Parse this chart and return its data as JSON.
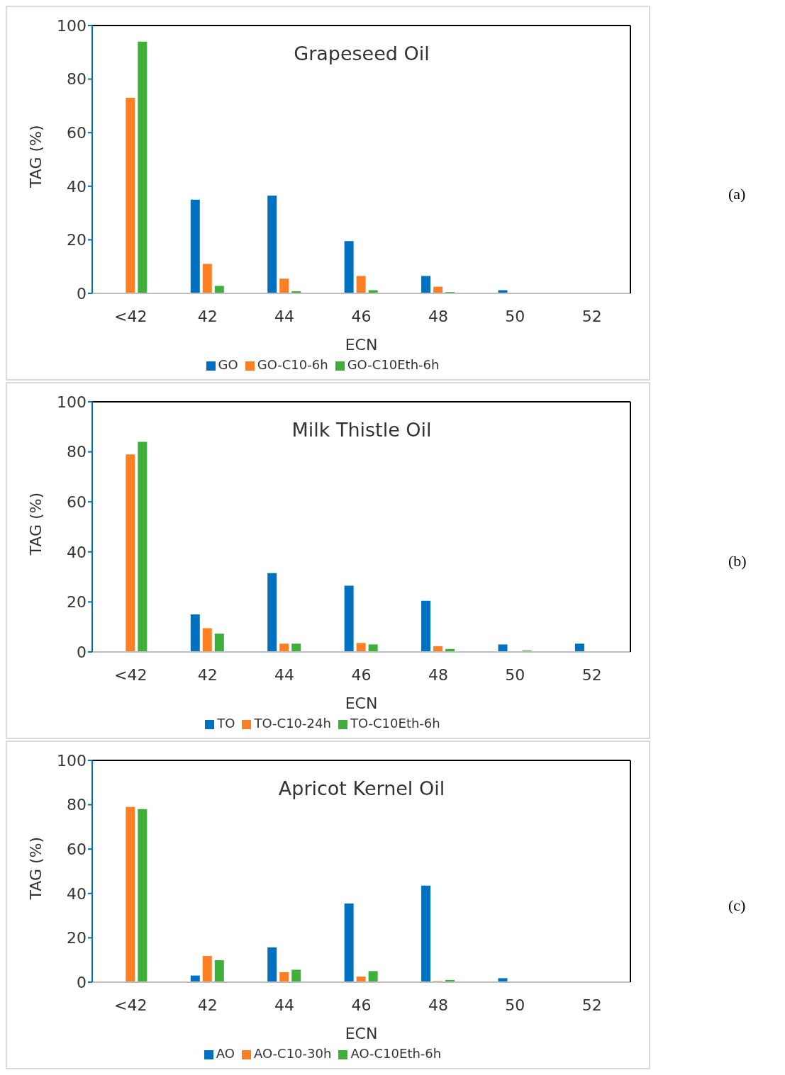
{
  "chart_data": [
    {
      "type": "bar",
      "title": "Grapeseed Oil",
      "xlabel": "ECN",
      "ylabel": "TAG (%)",
      "annotations": [
        "(a)"
      ],
      "categories": [
        "<42",
        "42",
        "44",
        "46",
        "48",
        "50",
        "52"
      ],
      "ylim": [
        0,
        100
      ],
      "yticks": [
        0,
        20,
        40,
        60,
        80,
        100
      ],
      "legend": "bottom",
      "series": [
        {
          "name": "GO",
          "color": "#0070c0",
          "values": [
            0,
            35,
            36.5,
            19.5,
            6.5,
            1.2,
            0
          ]
        },
        {
          "name": "GO-C10-6h",
          "color": "#fd7f23",
          "values": [
            73,
            11,
            5.5,
            6.5,
            2.5,
            0,
            0
          ]
        },
        {
          "name": "GO-C10Eth-6h",
          "color": "#3fae3a",
          "values": [
            94,
            2.8,
            0.8,
            1.2,
            0.5,
            0,
            0
          ]
        }
      ]
    },
    {
      "type": "bar",
      "title": "Milk Thistle Oil",
      "xlabel": "ECN",
      "ylabel": "TAG (%)",
      "annotations": [
        "(b)"
      ],
      "categories": [
        "<42",
        "42",
        "44",
        "46",
        "48",
        "50",
        "52"
      ],
      "ylim": [
        0,
        100
      ],
      "yticks": [
        0,
        20,
        40,
        60,
        80,
        100
      ],
      "legend": "bottom",
      "series": [
        {
          "name": "TO",
          "color": "#0070c0",
          "values": [
            0,
            15,
            31.5,
            26.5,
            20.5,
            3,
            3.3
          ]
        },
        {
          "name": "TO-C10-24h",
          "color": "#fd7f23",
          "values": [
            79,
            9.5,
            3.3,
            3.6,
            2.3,
            0,
            0
          ]
        },
        {
          "name": "TO-C10Eth-6h",
          "color": "#3fae3a",
          "values": [
            84,
            7.3,
            3.3,
            3,
            1.2,
            0.6,
            0
          ]
        }
      ]
    },
    {
      "type": "bar",
      "title": "Apricot Kernel Oil",
      "xlabel": "ECN",
      "ylabel": "TAG (%)",
      "annotations": [
        "(c)"
      ],
      "categories": [
        "<42",
        "42",
        "44",
        "46",
        "48",
        "50",
        "52"
      ],
      "ylim": [
        0,
        100
      ],
      "yticks": [
        0,
        20,
        40,
        60,
        80,
        100
      ],
      "legend": "bottom",
      "series": [
        {
          "name": "AO",
          "color": "#0070c0",
          "values": [
            0,
            3,
            15.7,
            35.5,
            43.5,
            1.8,
            0
          ]
        },
        {
          "name": "AO-C10-30h",
          "color": "#fd7f23",
          "values": [
            79,
            11.8,
            4.5,
            2.5,
            0.5,
            0,
            0
          ]
        },
        {
          "name": "AO-C10Eth-6h",
          "color": "#3fae3a",
          "values": [
            78,
            9.9,
            5.6,
            5,
            1,
            0,
            0
          ]
        }
      ]
    }
  ]
}
